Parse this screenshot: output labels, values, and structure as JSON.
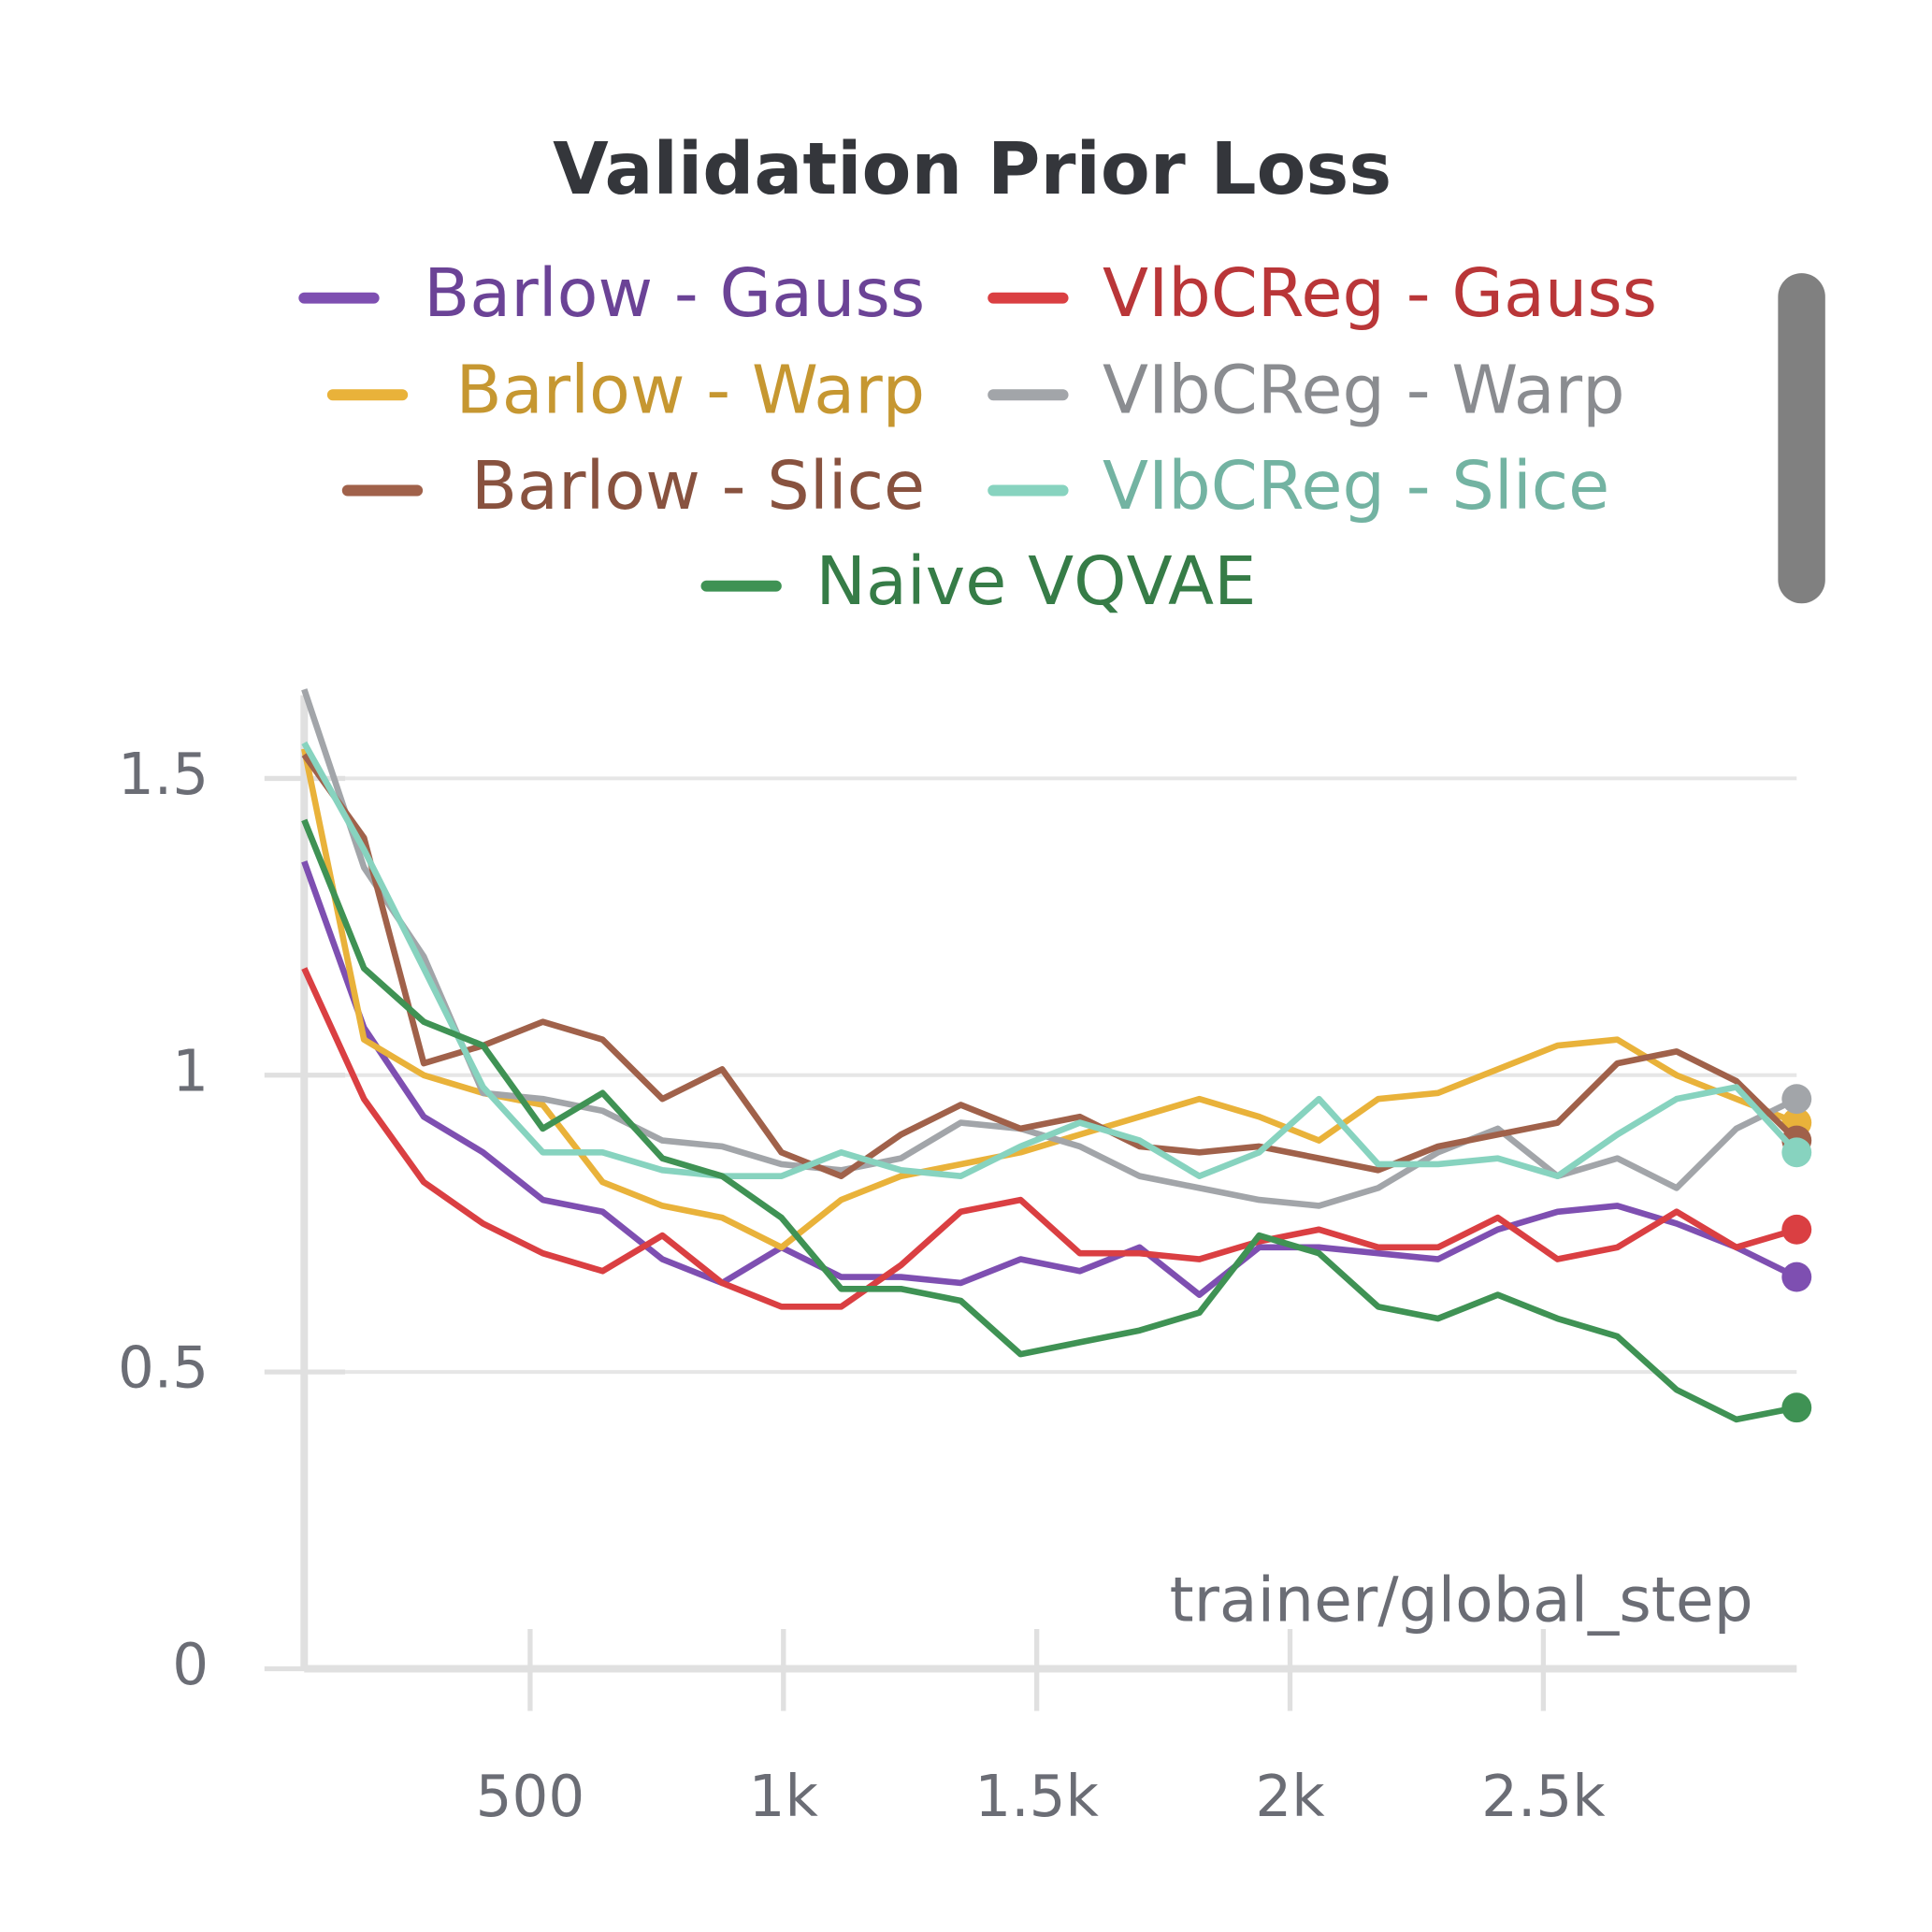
{
  "chart_data": {
    "type": "line",
    "title": "Validation Prior Loss",
    "x_label": "trainer/global_step",
    "x": [
      54,
      172,
      290,
      407,
      525,
      643,
      761,
      879,
      996,
      1114,
      1232,
      1350,
      1468,
      1585,
      1703,
      1821,
      1939,
      2057,
      2174,
      2292,
      2410,
      2528,
      2646,
      2763,
      2881,
      3000
    ],
    "series": [
      {
        "name": "Barlow - Gauss",
        "color": "#7e4fb1",
        "values": [
          1.36,
          1.08,
          0.93,
          0.87,
          0.79,
          0.77,
          0.69,
          0.65,
          0.71,
          0.66,
          0.66,
          0.65,
          0.69,
          0.67,
          0.71,
          0.63,
          0.71,
          0.71,
          0.7,
          0.69,
          0.74,
          0.77,
          0.78,
          0.75,
          0.71,
          0.66
        ]
      },
      {
        "name": "VIbCReg - Gauss",
        "color": "#da3f42",
        "values": [
          1.18,
          0.96,
          0.82,
          0.75,
          0.7,
          0.67,
          0.73,
          0.65,
          0.61,
          0.61,
          0.68,
          0.77,
          0.79,
          0.7,
          0.7,
          0.69,
          0.72,
          0.74,
          0.71,
          0.71,
          0.76,
          0.69,
          0.71,
          0.77,
          0.71,
          0.74
        ]
      },
      {
        "name": "Barlow - Warp",
        "color": "#e9b23a",
        "values": [
          1.55,
          1.06,
          1.0,
          0.97,
          0.95,
          0.82,
          0.78,
          0.76,
          0.71,
          0.79,
          0.83,
          0.85,
          0.87,
          0.9,
          0.93,
          0.96,
          0.93,
          0.89,
          0.96,
          0.97,
          1.01,
          1.05,
          1.06,
          1.0,
          0.96,
          0.92
        ]
      },
      {
        "name": "VIbCReg - Warp",
        "color": "#a2a5a9",
        "values": [
          1.65,
          1.35,
          1.2,
          0.97,
          0.96,
          0.94,
          0.89,
          0.88,
          0.85,
          0.84,
          0.86,
          0.92,
          0.91,
          0.88,
          0.83,
          0.81,
          0.79,
          0.78,
          0.81,
          0.87,
          0.91,
          0.83,
          0.86,
          0.81,
          0.91,
          0.96
        ]
      },
      {
        "name": "Barlow - Slice",
        "color": "#a0614a",
        "values": [
          1.54,
          1.4,
          1.02,
          1.05,
          1.09,
          1.06,
          0.96,
          1.01,
          0.87,
          0.83,
          0.9,
          0.95,
          0.91,
          0.93,
          0.88,
          0.87,
          0.88,
          0.86,
          0.84,
          0.88,
          0.9,
          0.92,
          1.02,
          1.04,
          0.99,
          0.89
        ]
      },
      {
        "name": "VIbCReg - Slice",
        "color": "#87d3bf",
        "values": [
          1.56,
          1.38,
          1.18,
          0.98,
          0.87,
          0.87,
          0.84,
          0.83,
          0.83,
          0.87,
          0.84,
          0.83,
          0.88,
          0.92,
          0.89,
          0.83,
          0.87,
          0.96,
          0.85,
          0.85,
          0.86,
          0.83,
          0.9,
          0.96,
          0.98,
          0.87
        ]
      },
      {
        "name": "Naive VQVAE",
        "color": "#3f9254",
        "values": [
          1.43,
          1.18,
          1.09,
          1.05,
          0.91,
          0.97,
          0.86,
          0.83,
          0.76,
          0.64,
          0.64,
          0.62,
          0.53,
          0.55,
          0.57,
          0.6,
          0.73,
          0.7,
          0.61,
          0.59,
          0.63,
          0.59,
          0.56,
          0.47,
          0.42,
          0.44
        ]
      }
    ],
    "xlim": [
      54,
      3000
    ],
    "ylim": [
      0,
      1.64
    ],
    "xticks": [
      {
        "value": 500,
        "label": "500"
      },
      {
        "value": 1000,
        "label": "1k"
      },
      {
        "value": 1500,
        "label": "1.5k"
      },
      {
        "value": 2000,
        "label": "2k"
      },
      {
        "value": 2500,
        "label": "2.5k"
      }
    ],
    "yticks": [
      0,
      0.5,
      1,
      1.5
    ],
    "grid": true
  }
}
